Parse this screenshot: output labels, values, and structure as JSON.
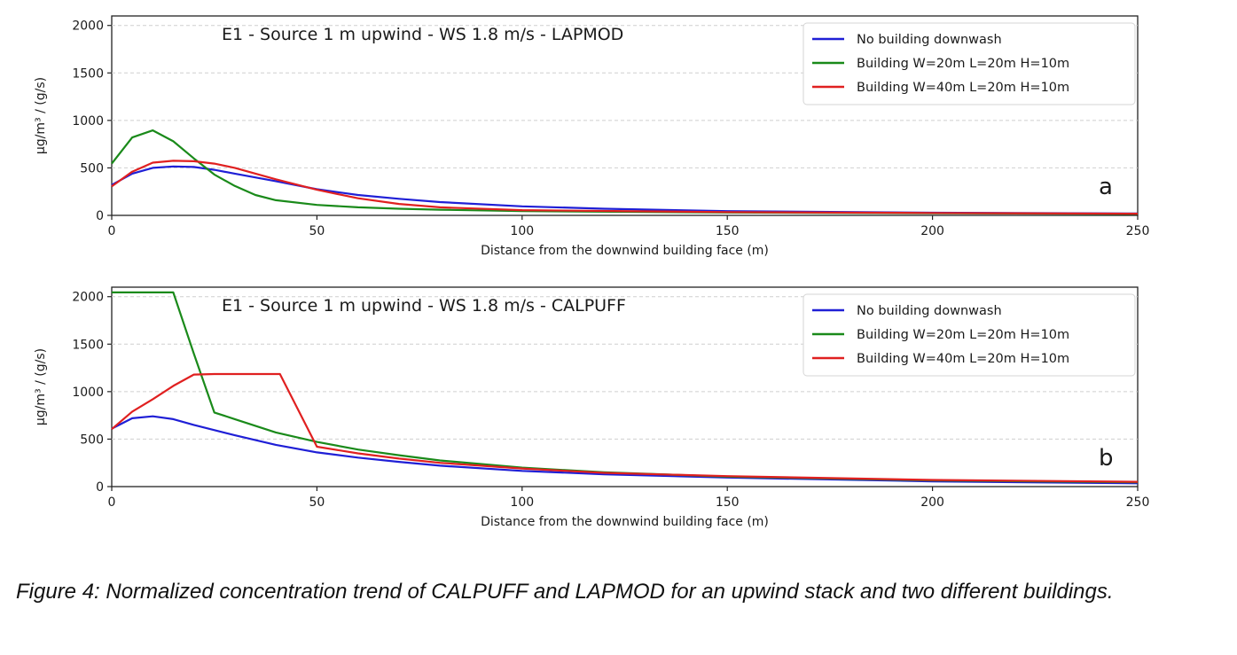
{
  "chart_data": [
    {
      "type": "line",
      "title": "E1 - Source 1 m upwind - WS 1.8 m/s - LAPMOD",
      "panel_letter": "a",
      "xlabel": "Distance from the downwind building face (m)",
      "ylabel": "µg/m³ / (g/s)",
      "xlim": [
        0,
        250
      ],
      "ylim": [
        0,
        2100
      ],
      "xticks": [
        0,
        50,
        100,
        150,
        200,
        250
      ],
      "yticks": [
        0,
        500,
        1000,
        1500,
        2000
      ],
      "grid": "horizontal dashed",
      "legend_position": "top-right",
      "series": [
        {
          "name": "No building downwash",
          "color": "#1f1fd6",
          "points": [
            [
              0,
              320
            ],
            [
              5,
              440
            ],
            [
              10,
              500
            ],
            [
              15,
              515
            ],
            [
              20,
              510
            ],
            [
              25,
              480
            ],
            [
              30,
              440
            ],
            [
              40,
              360
            ],
            [
              50,
              275
            ],
            [
              60,
              215
            ],
            [
              70,
              175
            ],
            [
              80,
              140
            ],
            [
              100,
              95
            ],
            [
              120,
              70
            ],
            [
              150,
              45
            ],
            [
              200,
              28
            ],
            [
              250,
              20
            ]
          ]
        },
        {
          "name": "Building W=20m L=20m H=10m",
          "color": "#1a8a1a",
          "points": [
            [
              0,
              545
            ],
            [
              5,
              820
            ],
            [
              10,
              895
            ],
            [
              15,
              780
            ],
            [
              20,
              600
            ],
            [
              25,
              430
            ],
            [
              30,
              310
            ],
            [
              35,
              215
            ],
            [
              40,
              160
            ],
            [
              50,
              110
            ],
            [
              60,
              85
            ],
            [
              70,
              70
            ],
            [
              80,
              60
            ],
            [
              100,
              45
            ],
            [
              150,
              30
            ],
            [
              200,
              22
            ],
            [
              250,
              15
            ]
          ]
        },
        {
          "name": "Building W=40m L=20m H=10m",
          "color": "#e02020",
          "points": [
            [
              0,
              305
            ],
            [
              5,
              460
            ],
            [
              10,
              555
            ],
            [
              15,
              575
            ],
            [
              20,
              570
            ],
            [
              25,
              545
            ],
            [
              30,
              500
            ],
            [
              40,
              380
            ],
            [
              50,
              270
            ],
            [
              60,
              180
            ],
            [
              70,
              120
            ],
            [
              80,
              85
            ],
            [
              100,
              55
            ],
            [
              150,
              35
            ],
            [
              200,
              25
            ],
            [
              250,
              18
            ]
          ]
        }
      ]
    },
    {
      "type": "line",
      "title": "E1 - Source 1 m upwind - WS 1.8 m/s - CALPUFF",
      "panel_letter": "b",
      "xlabel": "Distance from the downwind building face (m)",
      "ylabel": "µg/m³ / (g/s)",
      "xlim": [
        0,
        250
      ],
      "ylim": [
        0,
        2100
      ],
      "xticks": [
        0,
        50,
        100,
        150,
        200,
        250
      ],
      "yticks": [
        0,
        500,
        1000,
        1500,
        2000
      ],
      "grid": "horizontal dashed",
      "legend_position": "top-right",
      "series": [
        {
          "name": "No building downwash",
          "color": "#1f1fd6",
          "points": [
            [
              0,
              610
            ],
            [
              5,
              720
            ],
            [
              10,
              740
            ],
            [
              15,
              710
            ],
            [
              20,
              650
            ],
            [
              30,
              540
            ],
            [
              40,
              440
            ],
            [
              50,
              360
            ],
            [
              60,
              305
            ],
            [
              70,
              260
            ],
            [
              80,
              220
            ],
            [
              100,
              165
            ],
            [
              120,
              130
            ],
            [
              150,
              95
            ],
            [
              200,
              55
            ],
            [
              250,
              35
            ]
          ]
        },
        {
          "name": "Building W=20m L=20m H=10m",
          "color": "#1a8a1a",
          "points": [
            [
              0,
              2045
            ],
            [
              5,
              2045
            ],
            [
              10,
              2045
            ],
            [
              15,
              2045
            ],
            [
              20,
              1400
            ],
            [
              25,
              780
            ],
            [
              30,
              710
            ],
            [
              40,
              570
            ],
            [
              50,
              470
            ],
            [
              60,
              390
            ],
            [
              70,
              330
            ],
            [
              80,
              275
            ],
            [
              100,
              200
            ],
            [
              120,
              150
            ],
            [
              150,
              105
            ],
            [
              200,
              65
            ],
            [
              250,
              45
            ]
          ]
        },
        {
          "name": "Building W=40m L=20m H=10m",
          "color": "#e02020",
          "points": [
            [
              0,
              605
            ],
            [
              5,
              790
            ],
            [
              10,
              920
            ],
            [
              15,
              1060
            ],
            [
              20,
              1180
            ],
            [
              25,
              1185
            ],
            [
              30,
              1185
            ],
            [
              35,
              1185
            ],
            [
              41,
              1185
            ],
            [
              50,
              420
            ],
            [
              60,
              350
            ],
            [
              70,
              295
            ],
            [
              80,
              250
            ],
            [
              100,
              190
            ],
            [
              120,
              145
            ],
            [
              150,
              110
            ],
            [
              200,
              70
            ],
            [
              250,
              50
            ]
          ]
        }
      ]
    }
  ],
  "caption": "Figure 4: Normalized concentration trend of CALPUFF and LAPMOD for an upwind stack and two different buildings."
}
